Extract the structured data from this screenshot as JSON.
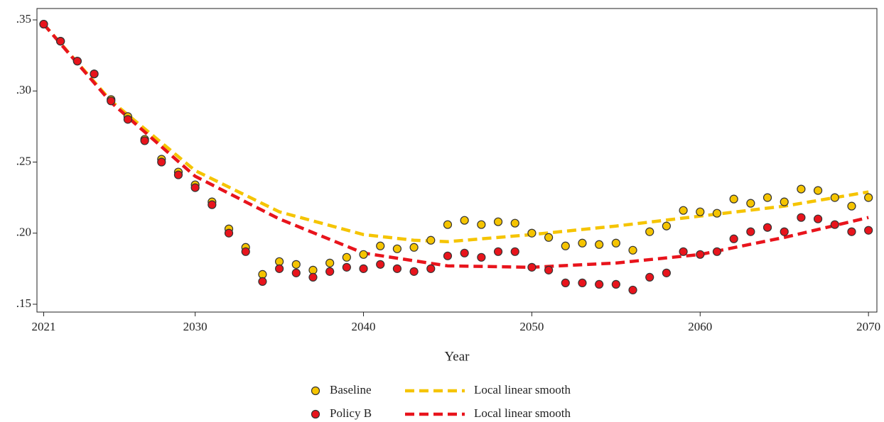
{
  "chart_data": {
    "type": "scatter",
    "x_label": "Year",
    "xlim": [
      2020.6,
      2070.5
    ],
    "ylim": [
      0.1445,
      0.358
    ],
    "xticks": [
      2021,
      2030,
      2040,
      2050,
      2060,
      2070
    ],
    "yticks": [
      {
        "value": 0.15,
        "label": ".15"
      },
      {
        "value": 0.2,
        "label": ".20"
      },
      {
        "value": 0.25,
        "label": ".25"
      },
      {
        "value": 0.3,
        "label": ".30"
      },
      {
        "value": 0.35,
        "label": ".35"
      }
    ],
    "grid": false,
    "legend": "bottom",
    "series": [
      {
        "name": "Baseline",
        "color": "#f5c400",
        "style": "markers",
        "x": [
          2021,
          2022,
          2023,
          2024,
          2025,
          2026,
          2027,
          2028,
          2029,
          2030,
          2031,
          2032,
          2033,
          2034,
          2035,
          2036,
          2037,
          2038,
          2039,
          2040,
          2041,
          2042,
          2043,
          2044,
          2045,
          2046,
          2047,
          2048,
          2049,
          2050,
          2051,
          2052,
          2053,
          2054,
          2055,
          2056,
          2057,
          2058,
          2059,
          2060,
          2061,
          2062,
          2063,
          2064,
          2065,
          2066,
          2067,
          2068,
          2069,
          2070
        ],
        "values": [
          0.347,
          0.335,
          0.321,
          0.312,
          0.294,
          0.282,
          0.266,
          0.252,
          0.243,
          0.234,
          0.222,
          0.203,
          0.19,
          0.171,
          0.18,
          0.178,
          0.174,
          0.179,
          0.183,
          0.185,
          0.191,
          0.189,
          0.19,
          0.195,
          0.206,
          0.209,
          0.206,
          0.208,
          0.207,
          0.2,
          0.197,
          0.191,
          0.193,
          0.192,
          0.193,
          0.188,
          0.201,
          0.205,
          0.216,
          0.215,
          0.214,
          0.224,
          0.221,
          0.225,
          0.222,
          0.231,
          0.23,
          0.225,
          0.219,
          0.225
        ]
      },
      {
        "name": "Local linear smooth",
        "color": "#f5c400",
        "style": "dashed",
        "x": [
          2021,
          2025,
          2030,
          2035,
          2040,
          2043,
          2045,
          2050,
          2055,
          2060,
          2065,
          2070
        ],
        "values": [
          0.347,
          0.293,
          0.244,
          0.215,
          0.199,
          0.195,
          0.194,
          0.199,
          0.205,
          0.212,
          0.219,
          0.229
        ]
      },
      {
        "name": "Policy B",
        "color": "#e8141c",
        "style": "markers",
        "x": [
          2021,
          2022,
          2023,
          2024,
          2025,
          2026,
          2027,
          2028,
          2029,
          2030,
          2031,
          2032,
          2033,
          2034,
          2035,
          2036,
          2037,
          2038,
          2039,
          2040,
          2041,
          2042,
          2043,
          2044,
          2045,
          2046,
          2047,
          2048,
          2049,
          2050,
          2051,
          2052,
          2053,
          2054,
          2055,
          2056,
          2057,
          2058,
          2059,
          2060,
          2061,
          2062,
          2063,
          2064,
          2065,
          2066,
          2067,
          2068,
          2069,
          2070
        ],
        "values": [
          0.347,
          0.335,
          0.321,
          0.312,
          0.293,
          0.28,
          0.265,
          0.25,
          0.241,
          0.232,
          0.22,
          0.2,
          0.187,
          0.166,
          0.175,
          0.172,
          0.169,
          0.173,
          0.176,
          0.175,
          0.178,
          0.175,
          0.173,
          0.175,
          0.184,
          0.186,
          0.183,
          0.187,
          0.187,
          0.176,
          0.174,
          0.165,
          0.165,
          0.164,
          0.164,
          0.16,
          0.169,
          0.172,
          0.187,
          0.185,
          0.187,
          0.196,
          0.201,
          0.204,
          0.201,
          0.211,
          0.21,
          0.206,
          0.201,
          0.202
        ]
      },
      {
        "name": "Local linear smooth",
        "color": "#e8141c",
        "style": "dashed",
        "x": [
          2021,
          2025,
          2030,
          2035,
          2040,
          2045,
          2050,
          2055,
          2060,
          2065,
          2070
        ],
        "values": [
          0.347,
          0.292,
          0.24,
          0.21,
          0.186,
          0.177,
          0.176,
          0.179,
          0.185,
          0.197,
          0.211
        ]
      }
    ]
  }
}
